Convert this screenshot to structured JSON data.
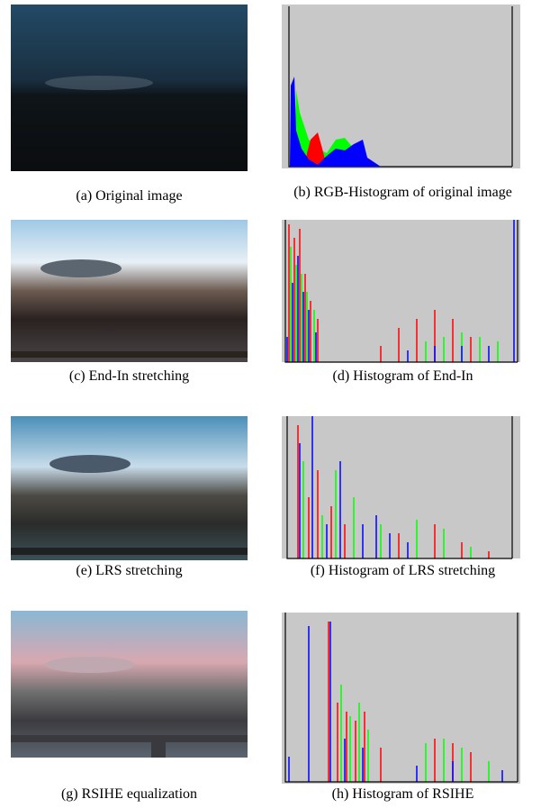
{
  "captions": [
    "(a) Original image",
    "(b) RGB-Histogram of original image",
    "(c) End-In stretching",
    "(d) Histogram of End-In",
    "(e) LRS stretching",
    "(f) Histogram of LRS stretching",
    "(g) RSIHE equalization",
    "(h) Histogram of RSIHE"
  ]
}
